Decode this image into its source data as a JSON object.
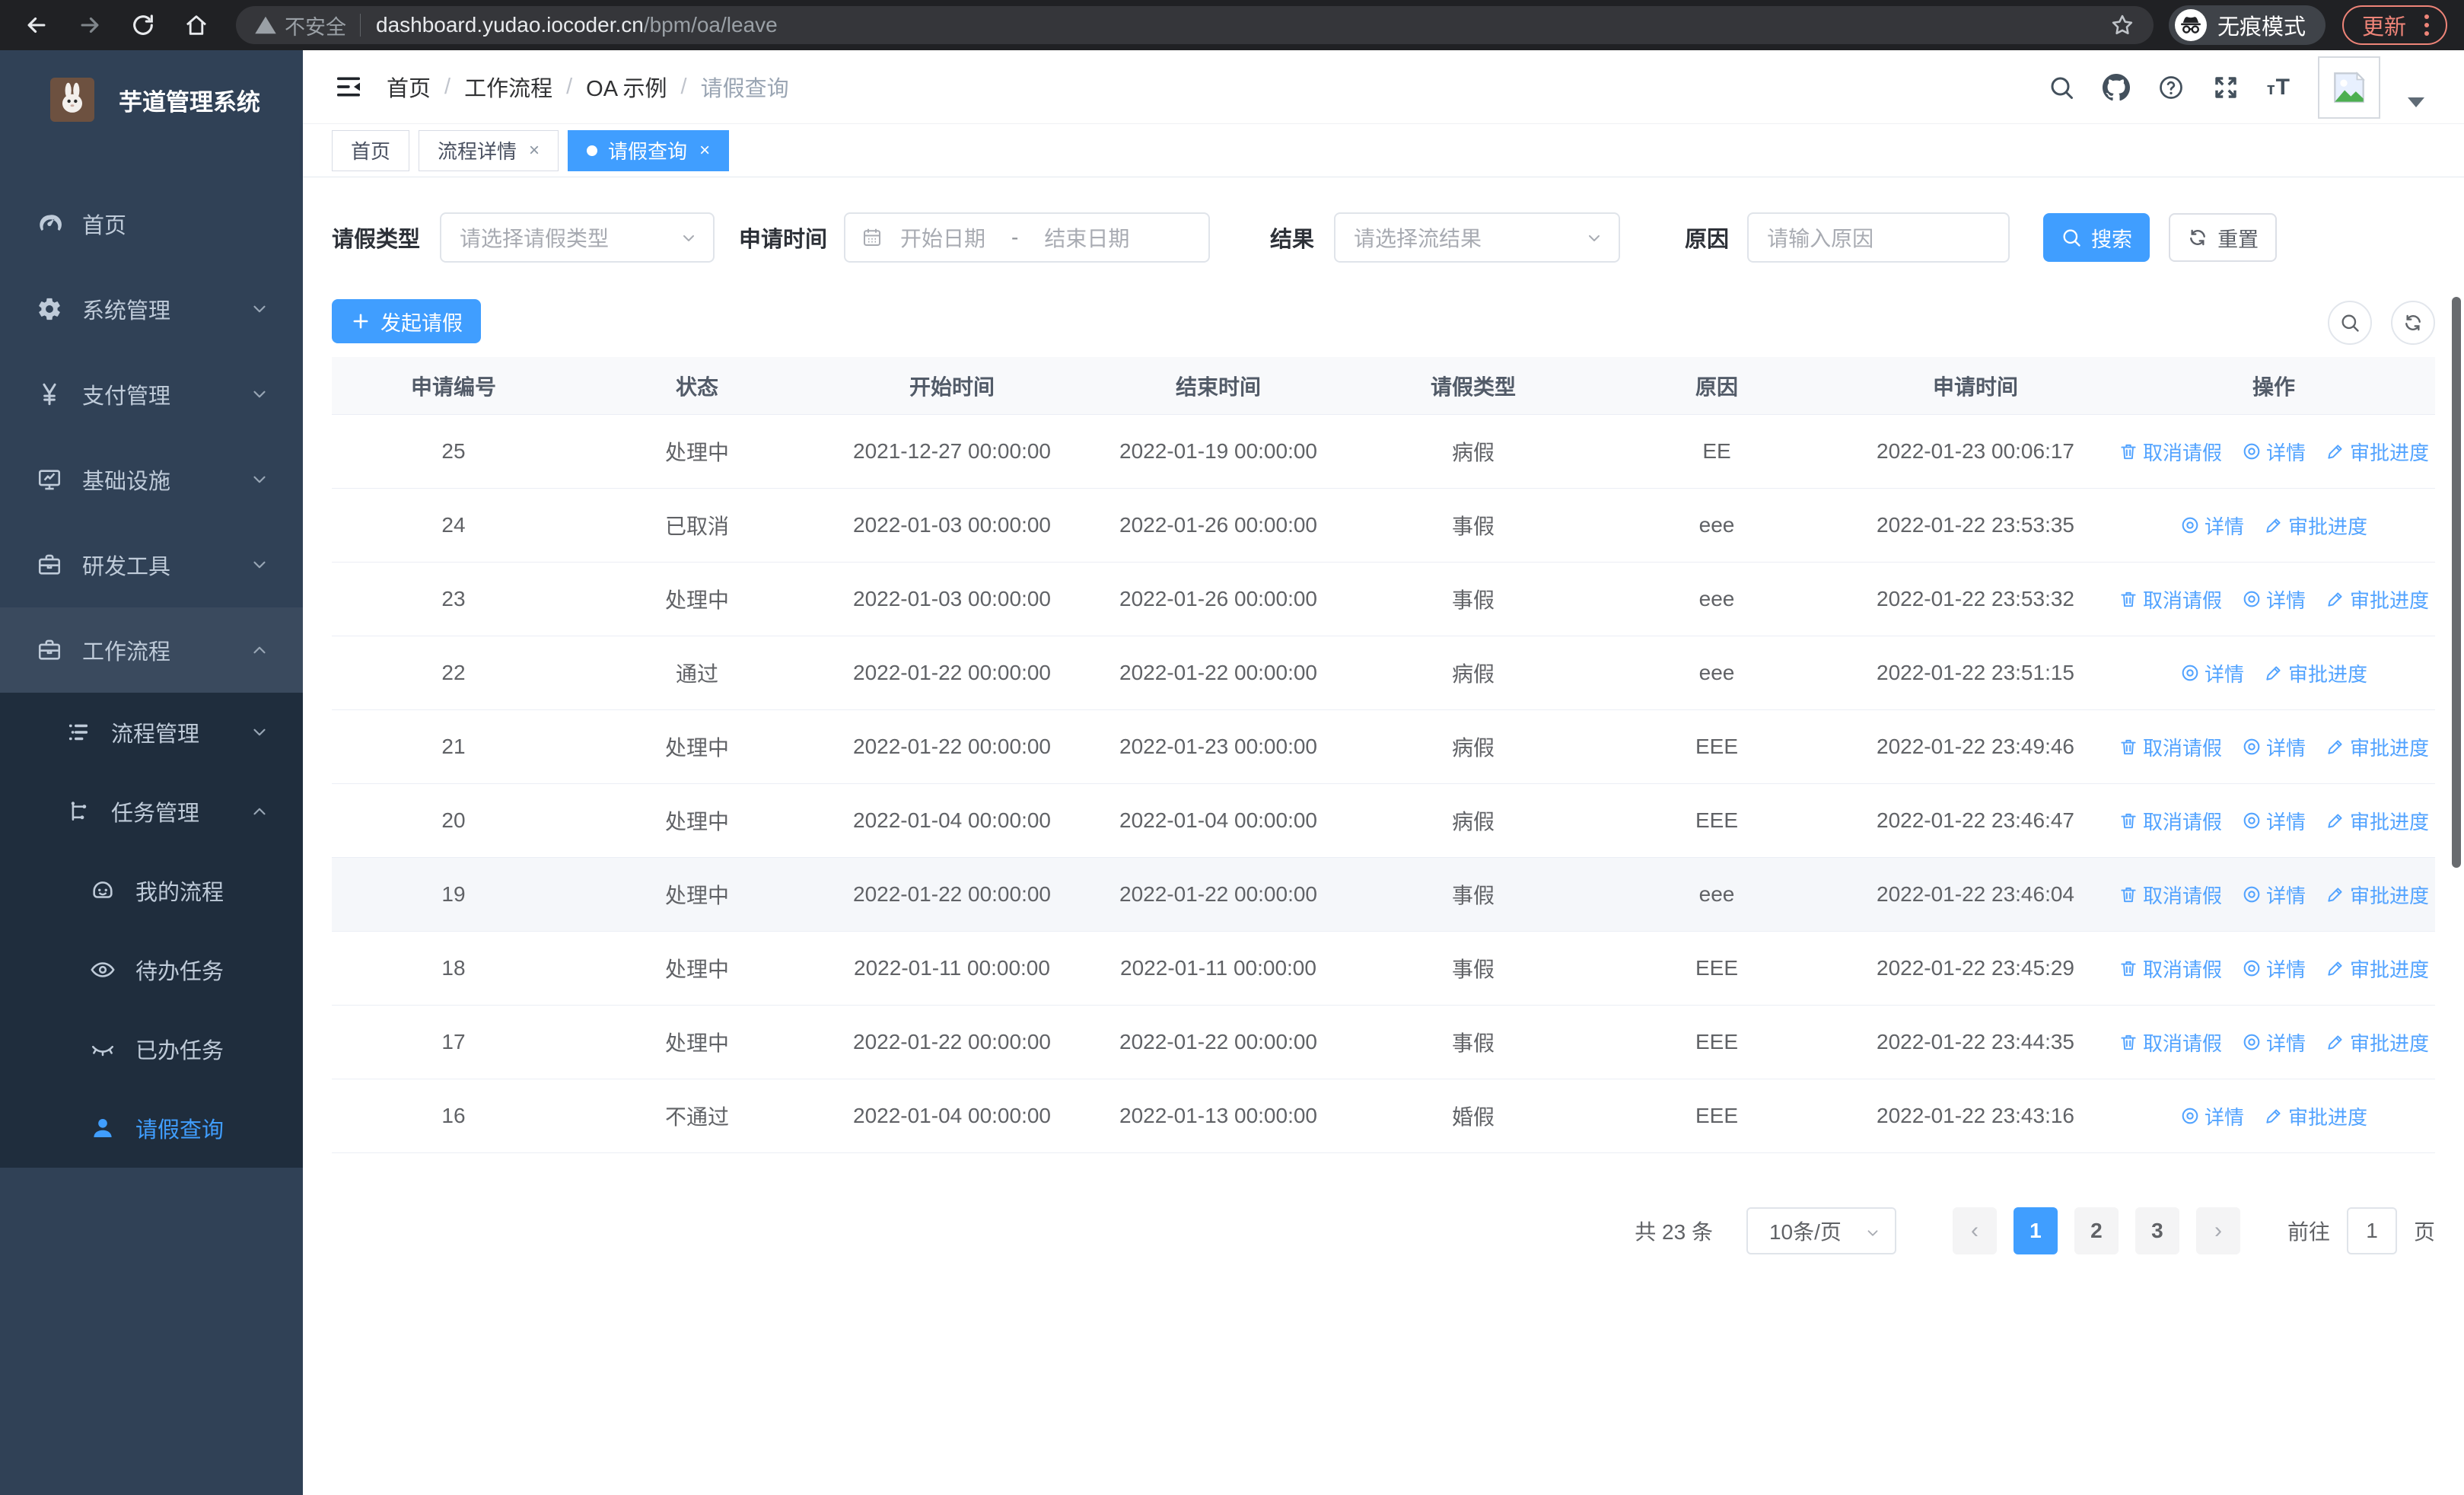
{
  "browser": {
    "security_warning": "不安全",
    "url_host": "dashboard.yudao.iocoder.cn",
    "url_path": "/bpm/oa/leave",
    "incognito_label": "无痕模式",
    "update_label": "更新"
  },
  "sidebar": {
    "app_title": "芋道管理系统",
    "items": [
      {
        "label": "首页",
        "icon": "dashboard-icon",
        "level": 1,
        "chevron": "",
        "active": false,
        "in_sub": false,
        "opened": false
      },
      {
        "label": "系统管理",
        "icon": "gear-icon",
        "level": 1,
        "chevron": "down",
        "active": false,
        "in_sub": false,
        "opened": false
      },
      {
        "label": "支付管理",
        "icon": "yen-icon",
        "level": 1,
        "chevron": "down",
        "active": false,
        "in_sub": false,
        "opened": false
      },
      {
        "label": "基础设施",
        "icon": "monitor-icon",
        "level": 1,
        "chevron": "down",
        "active": false,
        "in_sub": false,
        "opened": false
      },
      {
        "label": "研发工具",
        "icon": "toolbox-icon",
        "level": 1,
        "chevron": "down",
        "active": false,
        "in_sub": false,
        "opened": false
      },
      {
        "label": "工作流程",
        "icon": "briefcase-icon",
        "level": 1,
        "chevron": "up",
        "active": false,
        "in_sub": false,
        "opened": true
      },
      {
        "label": "流程管理",
        "icon": "list-icon",
        "level": 2,
        "chevron": "down",
        "active": false,
        "in_sub": true,
        "opened": false
      },
      {
        "label": "任务管理",
        "icon": "flow-icon",
        "level": 2,
        "chevron": "up",
        "active": false,
        "in_sub": true,
        "opened": false
      },
      {
        "label": "我的流程",
        "icon": "robot-icon",
        "level": 3,
        "chevron": "",
        "active": false,
        "in_sub": true,
        "opened": false
      },
      {
        "label": "待办任务",
        "icon": "eye-icon",
        "level": 3,
        "chevron": "",
        "active": false,
        "in_sub": true,
        "opened": false
      },
      {
        "label": "已办任务",
        "icon": "eye-closed-icon",
        "level": 3,
        "chevron": "",
        "active": false,
        "in_sub": true,
        "opened": false
      },
      {
        "label": "请假查询",
        "icon": "user-icon",
        "level": 3,
        "chevron": "",
        "active": true,
        "in_sub": true,
        "opened": false
      }
    ]
  },
  "breadcrumb": [
    "首页",
    "工作流程",
    "OA 示例",
    "请假查询"
  ],
  "tabs": [
    {
      "label": "首页",
      "closable": false,
      "active": false
    },
    {
      "label": "流程详情",
      "closable": true,
      "active": false
    },
    {
      "label": "请假查询",
      "closable": true,
      "active": true
    }
  ],
  "filters": {
    "leave_type_label": "请假类型",
    "leave_type_placeholder": "请选择请假类型",
    "apply_time_label": "申请时间",
    "start_date_placeholder": "开始日期",
    "date_separator": "-",
    "end_date_placeholder": "结束日期",
    "result_label": "结果",
    "result_placeholder": "请选择流结果",
    "reason_label": "原因",
    "reason_placeholder": "请输入原因",
    "search_label": "搜索",
    "reset_label": "重置"
  },
  "toolbar": {
    "create_label": "发起请假"
  },
  "table": {
    "columns": [
      "申请编号",
      "状态",
      "开始时间",
      "结束时间",
      "请假类型",
      "原因",
      "申请时间",
      "操作"
    ],
    "action_labels": {
      "cancel": "取消请假",
      "detail": "详情",
      "progress": "审批进度"
    },
    "rows": [
      {
        "id": "25",
        "status": "处理中",
        "start": "2021-12-27 00:00:00",
        "end": "2022-01-19 00:00:00",
        "type": "病假",
        "reason": "EE",
        "applied": "2022-01-23 00:06:17",
        "actions": [
          "cancel",
          "detail",
          "progress"
        ],
        "highlight": false
      },
      {
        "id": "24",
        "status": "已取消",
        "start": "2022-01-03 00:00:00",
        "end": "2022-01-26 00:00:00",
        "type": "事假",
        "reason": "eee",
        "applied": "2022-01-22 23:53:35",
        "actions": [
          "detail",
          "progress"
        ],
        "highlight": false
      },
      {
        "id": "23",
        "status": "处理中",
        "start": "2022-01-03 00:00:00",
        "end": "2022-01-26 00:00:00",
        "type": "事假",
        "reason": "eee",
        "applied": "2022-01-22 23:53:32",
        "actions": [
          "cancel",
          "detail",
          "progress"
        ],
        "highlight": false
      },
      {
        "id": "22",
        "status": "通过",
        "start": "2022-01-22 00:00:00",
        "end": "2022-01-22 00:00:00",
        "type": "病假",
        "reason": "eee",
        "applied": "2022-01-22 23:51:15",
        "actions": [
          "detail",
          "progress"
        ],
        "highlight": false
      },
      {
        "id": "21",
        "status": "处理中",
        "start": "2022-01-22 00:00:00",
        "end": "2022-01-23 00:00:00",
        "type": "病假",
        "reason": "EEE",
        "applied": "2022-01-22 23:49:46",
        "actions": [
          "cancel",
          "detail",
          "progress"
        ],
        "highlight": false
      },
      {
        "id": "20",
        "status": "处理中",
        "start": "2022-01-04 00:00:00",
        "end": "2022-01-04 00:00:00",
        "type": "病假",
        "reason": "EEE",
        "applied": "2022-01-22 23:46:47",
        "actions": [
          "cancel",
          "detail",
          "progress"
        ],
        "highlight": false
      },
      {
        "id": "19",
        "status": "处理中",
        "start": "2022-01-22 00:00:00",
        "end": "2022-01-22 00:00:00",
        "type": "事假",
        "reason": "eee",
        "applied": "2022-01-22 23:46:04",
        "actions": [
          "cancel",
          "detail",
          "progress"
        ],
        "highlight": true
      },
      {
        "id": "18",
        "status": "处理中",
        "start": "2022-01-11 00:00:00",
        "end": "2022-01-11 00:00:00",
        "type": "事假",
        "reason": "EEE",
        "applied": "2022-01-22 23:45:29",
        "actions": [
          "cancel",
          "detail",
          "progress"
        ],
        "highlight": false
      },
      {
        "id": "17",
        "status": "处理中",
        "start": "2022-01-22 00:00:00",
        "end": "2022-01-22 00:00:00",
        "type": "事假",
        "reason": "EEE",
        "applied": "2022-01-22 23:44:35",
        "actions": [
          "cancel",
          "detail",
          "progress"
        ],
        "highlight": false
      },
      {
        "id": "16",
        "status": "不通过",
        "start": "2022-01-04 00:00:00",
        "end": "2022-01-13 00:00:00",
        "type": "婚假",
        "reason": "EEE",
        "applied": "2022-01-22 23:43:16",
        "actions": [
          "detail",
          "progress"
        ],
        "highlight": false
      }
    ]
  },
  "pagination": {
    "total_text": "共 23 条",
    "page_size": "10条/页",
    "prev_icon": "‹",
    "next_icon": "›",
    "pages": [
      "1",
      "2",
      "3"
    ],
    "active_page": "1",
    "goto_label": "前往",
    "goto_value": "1",
    "goto_suffix": "页"
  },
  "colors": {
    "accent": "#409eff",
    "sidebar_bg": "#304156",
    "submenu_bg": "#1f2d3d",
    "link": "#52a3ff"
  }
}
